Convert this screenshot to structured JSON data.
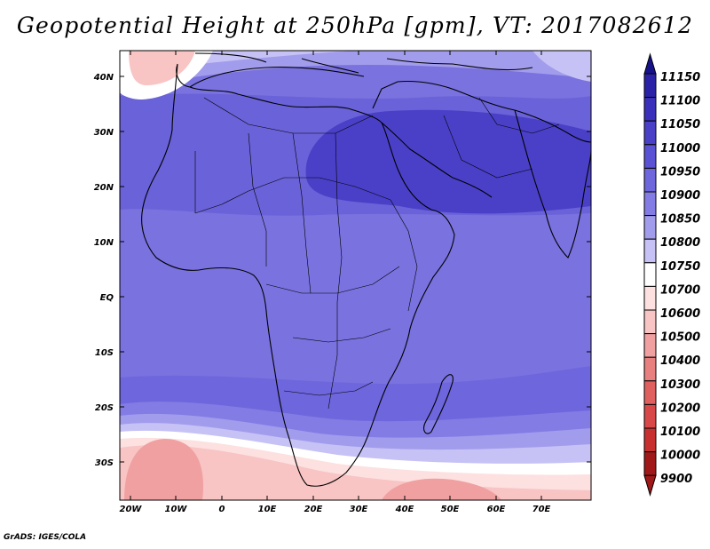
{
  "title": "Geopotential Height at 250hPa [gpm], VT: 2017082612",
  "footer": "GrADS: IGES/COLA",
  "map": {
    "lat_labels": [
      "40N",
      "30N",
      "20N",
      "10N",
      "EQ",
      "10S",
      "20S",
      "30S"
    ],
    "lon_labels": [
      "20W",
      "10W",
      "0",
      "10E",
      "20E",
      "30E",
      "40E",
      "50E",
      "60E",
      "70E"
    ]
  },
  "colorbar": {
    "levels": [
      "11150",
      "11100",
      "11050",
      "11000",
      "10950",
      "10900",
      "10850",
      "10800",
      "10750",
      "10700",
      "10600",
      "10500",
      "10400",
      "10300",
      "10200",
      "10100",
      "10000",
      "9900"
    ],
    "colors": [
      "#16128a",
      "#2a22a6",
      "#3a30bc",
      "#4a40c8",
      "#5a52d4",
      "#6e66dc",
      "#837ce4",
      "#a29cec",
      "#c6c2f5",
      "#ffffff",
      "#fde0e0",
      "#f8c4c4",
      "#f0a0a0",
      "#e88080",
      "#e06060",
      "#d84848",
      "#c83030",
      "#a01818"
    ]
  }
}
